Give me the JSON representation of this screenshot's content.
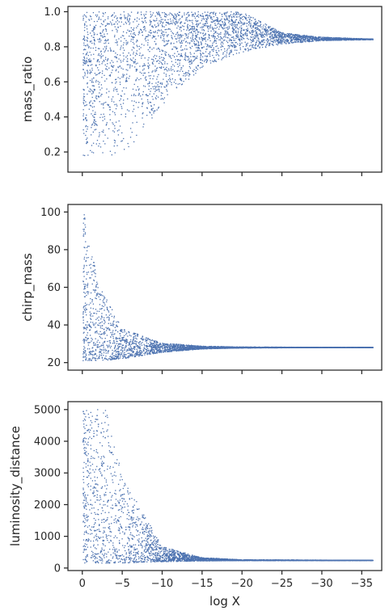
{
  "chart_data": [
    {
      "type": "scatter",
      "panel": "top",
      "ylabel": "mass_ratio",
      "xlabel": "",
      "xlim": [
        1.8,
        -37.5
      ],
      "ylim": [
        0.085,
        1.03
      ],
      "yticks": [
        0.2,
        0.4,
        0.6,
        0.8,
        1.0
      ],
      "ytick_labels": [
        "0.2",
        "0.4",
        "0.6",
        "0.8",
        "1.0"
      ],
      "xticks": [
        0,
        -5,
        -10,
        -15,
        -20,
        -25,
        -30,
        -35
      ],
      "show_xtick_labels": false,
      "marker_color": "#4c72b0",
      "x_range": [
        0,
        -36.5
      ],
      "shape": "spread between a rising lower envelope and 1.0 that converges to about 0.84 beyond log X of -25",
      "envelope_points": [
        {
          "x": -0.2,
          "y_low": 0.13,
          "y_high": 1.0
        },
        {
          "x": -5,
          "y_low": 0.16,
          "y_high": 1.0
        },
        {
          "x": -10,
          "y_low": 0.47,
          "y_high": 1.0
        },
        {
          "x": -15,
          "y_low": 0.68,
          "y_high": 1.0
        },
        {
          "x": -20,
          "y_low": 0.77,
          "y_high": 1.0
        },
        {
          "x": -25,
          "y_low": 0.815,
          "y_high": 0.88
        },
        {
          "x": -30,
          "y_low": 0.835,
          "y_high": 0.855
        },
        {
          "x": -36,
          "y_low": 0.84,
          "y_high": 0.845
        }
      ]
    },
    {
      "type": "scatter",
      "panel": "middle",
      "ylabel": "chirp_mass",
      "xlabel": "",
      "xlim": [
        1.8,
        -37.5
      ],
      "ylim": [
        16,
        104
      ],
      "yticks": [
        20,
        40,
        60,
        80,
        100
      ],
      "ytick_labels": [
        "20",
        "40",
        "60",
        "80",
        "100"
      ],
      "xticks": [
        0,
        -5,
        -10,
        -15,
        -20,
        -25,
        -30,
        -35
      ],
      "show_xtick_labels": false,
      "marker_color": "#4c72b0",
      "x_range": [
        0,
        -36.5
      ],
      "shape": "sharp decay from 100 near log X 0 converging to about 28 by log X of -15",
      "envelope_points": [
        {
          "x": -0.2,
          "y_low": 21,
          "y_high": 100
        },
        {
          "x": -2,
          "y_low": 21,
          "y_high": 62
        },
        {
          "x": -5,
          "y_low": 22,
          "y_high": 38
        },
        {
          "x": -10,
          "y_low": 25.5,
          "y_high": 30.5
        },
        {
          "x": -15,
          "y_low": 27.3,
          "y_high": 28.8
        },
        {
          "x": -20,
          "y_low": 27.8,
          "y_high": 28.3
        },
        {
          "x": -36,
          "y_low": 28,
          "y_high": 28.1
        }
      ]
    },
    {
      "type": "scatter",
      "panel": "bottom",
      "ylabel": "luminosity_distance",
      "xlabel": "log X",
      "xlim": [
        1.8,
        -37.5
      ],
      "ylim": [
        -80,
        5250
      ],
      "yticks": [
        0,
        1000,
        2000,
        3000,
        4000,
        5000
      ],
      "ytick_labels": [
        "0",
        "1000",
        "2000",
        "3000",
        "4000",
        "5000"
      ],
      "xticks": [
        0,
        -5,
        -10,
        -15,
        -20,
        -25,
        -30,
        -35
      ],
      "xtick_labels": [
        "0",
        "−5",
        "−10",
        "−15",
        "−20",
        "−25",
        "−30",
        "−35"
      ],
      "show_xtick_labels": true,
      "marker_color": "#4c72b0",
      "x_range": [
        0,
        -36.5
      ],
      "shape": "broad spread up to 5000 at small log X decaying to about 240 beyond log X of -15",
      "envelope_points": [
        {
          "x": -0.2,
          "y_low": 150,
          "y_high": 5000
        },
        {
          "x": -3,
          "y_low": 150,
          "y_high": 5000
        },
        {
          "x": -5,
          "y_low": 160,
          "y_high": 2900
        },
        {
          "x": -10,
          "y_low": 200,
          "y_high": 680
        },
        {
          "x": -15,
          "y_low": 225,
          "y_high": 330
        },
        {
          "x": -20,
          "y_low": 235,
          "y_high": 260
        },
        {
          "x": -36,
          "y_low": 238,
          "y_high": 245
        }
      ]
    }
  ]
}
